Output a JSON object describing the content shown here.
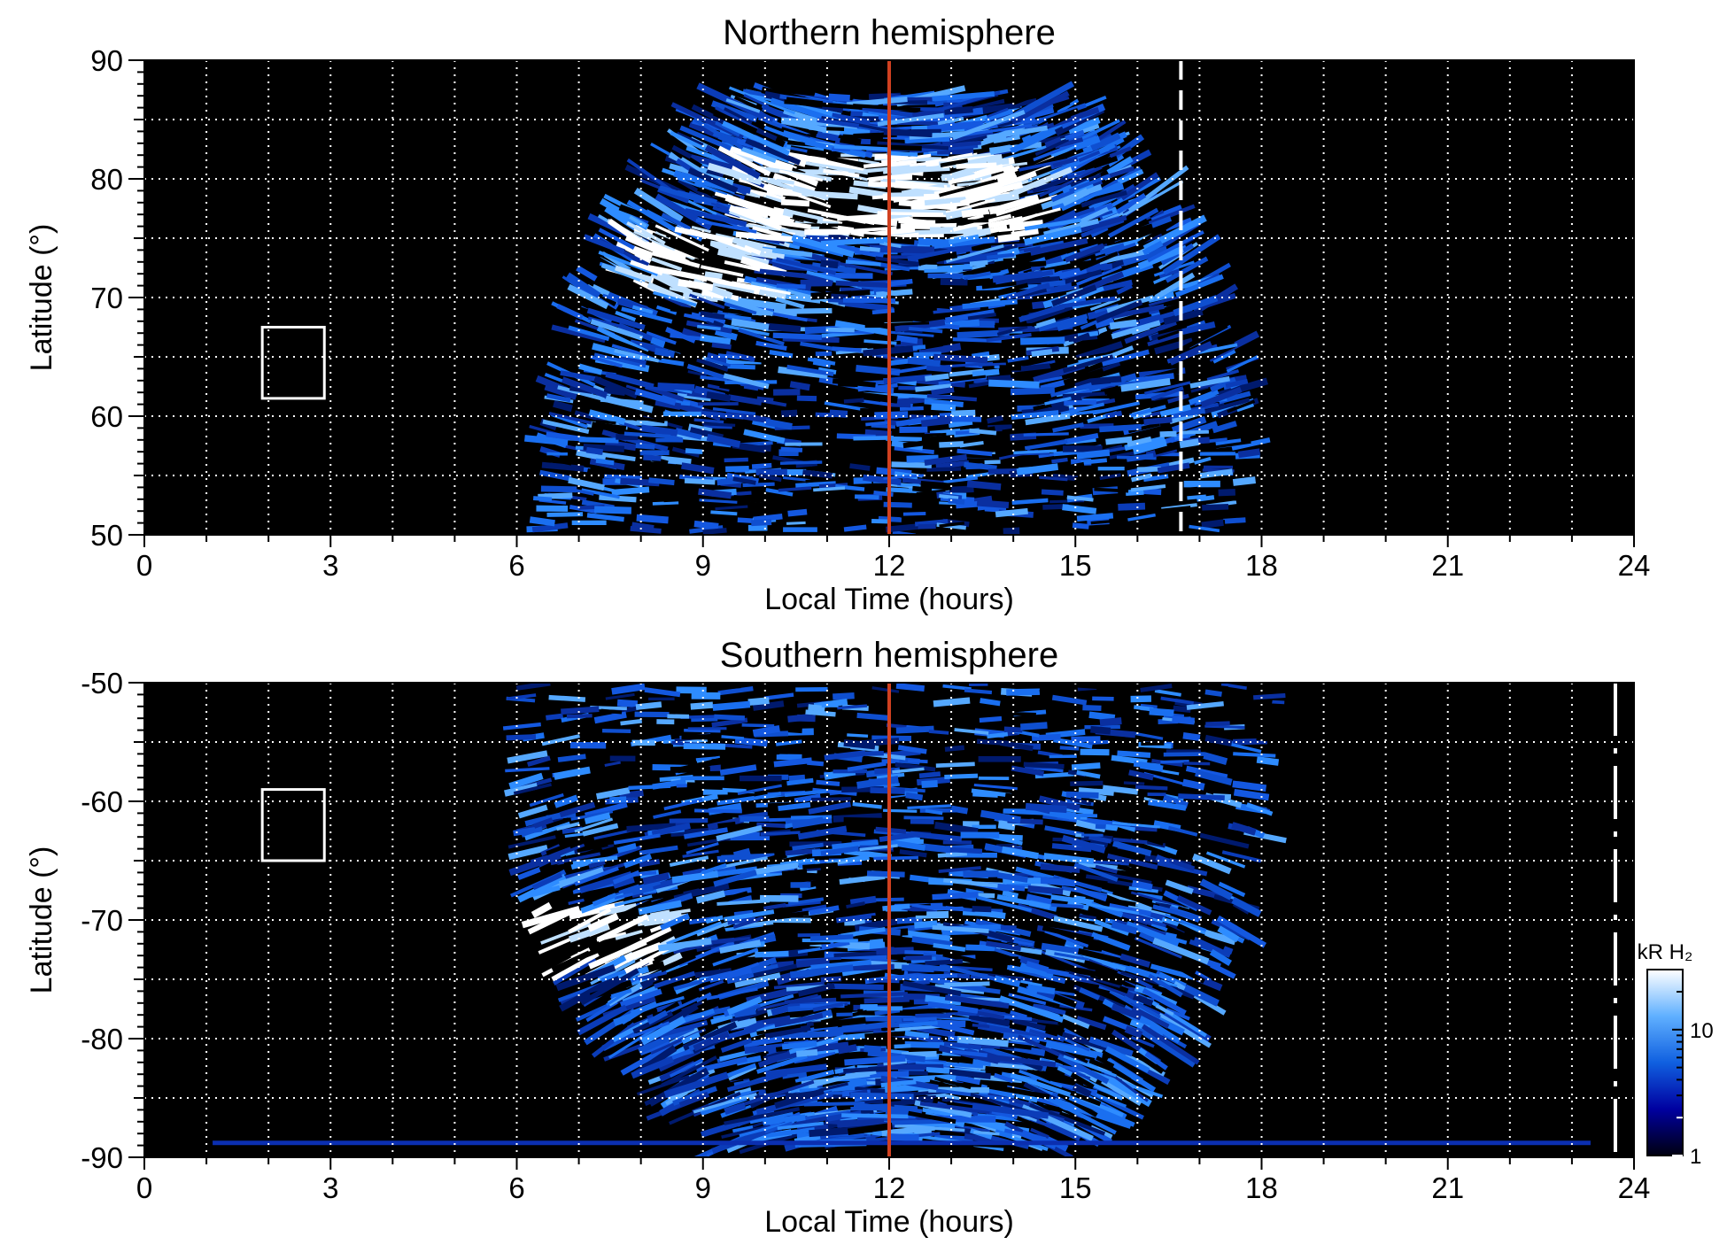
{
  "chart_data": [
    {
      "type": "heatmap",
      "title": "Northern hemisphere",
      "xlabel": "Local Time (hours)",
      "ylabel": "Latitude (°)",
      "xlim": [
        0,
        24
      ],
      "ylim": [
        50,
        90
      ],
      "x_ticks": [
        0,
        3,
        6,
        9,
        12,
        15,
        18,
        21,
        24
      ],
      "y_ticks": [
        50,
        60,
        70,
        80,
        90
      ],
      "grid": "dotted white, every 1 h and every 5°",
      "background": "#000000",
      "emission_region": {
        "local_time_range": [
          6.4,
          17.9
        ],
        "top_latitude": 87
      },
      "bright_regions": [
        {
          "local_time": [
            9.5,
            14.5
          ],
          "latitude": [
            75,
            82
          ]
        },
        {
          "local_time": [
            7.8,
            10.0
          ],
          "latitude": [
            70,
            76
          ]
        }
      ],
      "noon_line": {
        "local_time": 12,
        "color": "#d04020"
      },
      "dashed_line": {
        "local_time": 16.7,
        "color": "#ffffff"
      },
      "box": {
        "local_time": [
          1.9,
          2.9
        ],
        "latitude": [
          61.5,
          67.5
        ]
      }
    },
    {
      "type": "heatmap",
      "title": "Southern hemisphere",
      "xlabel": "Local Time (hours)",
      "ylabel": "Latitude (°)",
      "xlim": [
        0,
        24
      ],
      "ylim": [
        -90,
        -50
      ],
      "x_ticks": [
        0,
        3,
        6,
        9,
        12,
        15,
        18,
        21,
        24
      ],
      "y_ticks": [
        -90,
        -80,
        -70,
        -60,
        -50
      ],
      "grid": "dotted white, every 1 h and every 5°",
      "background": "#000000",
      "emission_region": {
        "local_time_range": [
          6.0,
          18.2
        ],
        "bottom_latitude": -89
      },
      "bright_regions": [
        {
          "local_time": [
            6.0,
            8.5
          ],
          "latitude": [
            -74,
            -69
          ]
        }
      ],
      "noon_line": {
        "local_time": 12,
        "color": "#d04020"
      },
      "dashdot_line": {
        "local_time": 23.7,
        "color": "#ffffff"
      },
      "box": {
        "local_time": [
          1.9,
          2.9
        ],
        "latitude": [
          -65,
          -59
        ]
      },
      "colorbar": {
        "label": "kR H₂",
        "scale": "log",
        "range": [
          1,
          30
        ],
        "tick_labels": [
          "1",
          "10"
        ],
        "colors": [
          "#000010",
          "#0000a0",
          "#1060e0",
          "#60b0ff",
          "#ffffff"
        ]
      }
    }
  ]
}
